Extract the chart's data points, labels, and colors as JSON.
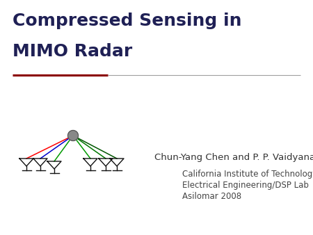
{
  "title_line1": "Compressed Sensing in",
  "title_line2": "MIMO Radar",
  "title_color": "#1f2055",
  "title_fontsize": 18,
  "title_fontweight": "bold",
  "sep_color_dark": "#8b0000",
  "sep_color_light": "#a0a0a0",
  "author": "Chun-Yang Chen and P. P. Vaidyanathan",
  "author_fontsize": 9.5,
  "affil1": "California Institute of Technology",
  "affil2": "Electrical Engineering/DSP Lab",
  "affil3": "Asilomar 2008",
  "affil_fontsize": 8.5,
  "bg_color": "#ffffff",
  "text_color": "#333333",
  "affil_color": "#444444",
  "line_colors": [
    "#ff0000",
    "#0000ff",
    "#009900",
    "#00bb00",
    "#007700",
    "#33aa33"
  ],
  "antenna_color": "#111111",
  "node_color": "#888888",
  "node_edge_color": "#555555"
}
